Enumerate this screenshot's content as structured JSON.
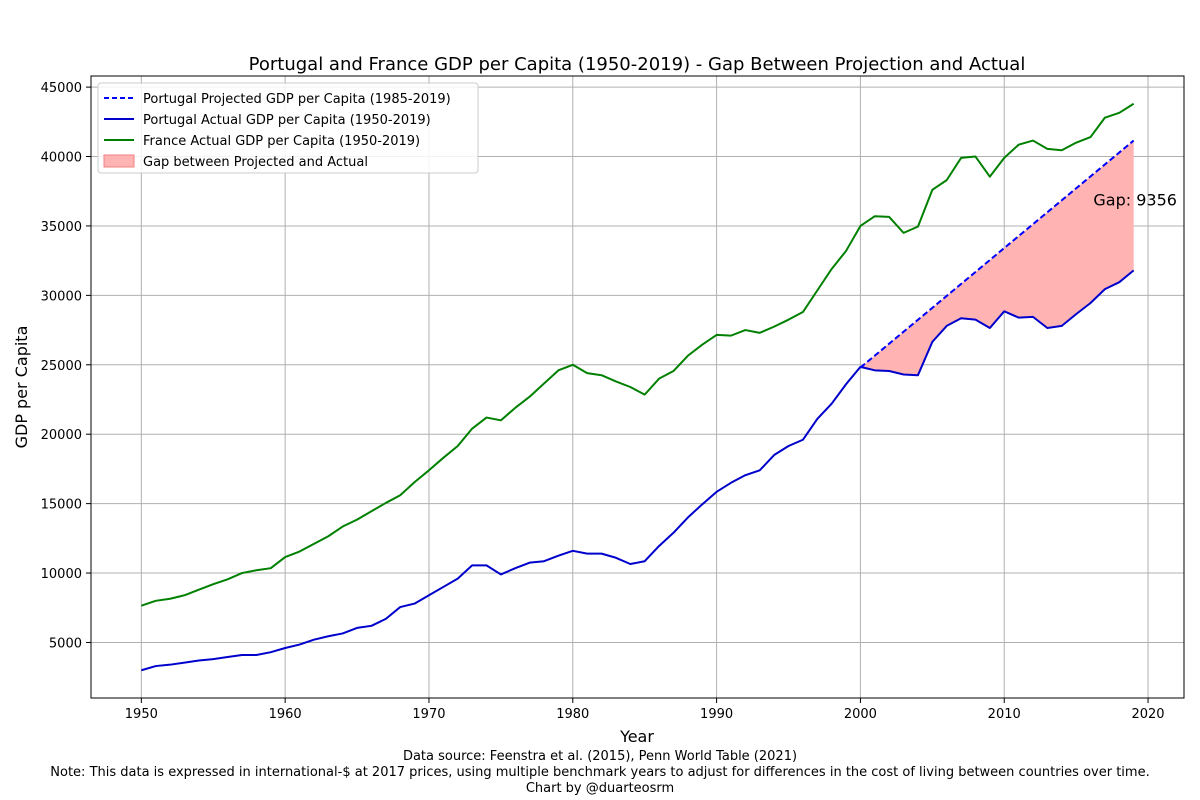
{
  "chart_data": {
    "type": "line",
    "title": "Portugal and France GDP per Capita (1950-2019) - Gap Between Projection and Actual",
    "xlabel": "Year",
    "ylabel": "GDP per Capita",
    "xlim": [
      1946.5,
      2022.5
    ],
    "ylim": [
      1000,
      45800
    ],
    "xticks": [
      1950,
      1960,
      1970,
      1980,
      1990,
      2000,
      2010,
      2020
    ],
    "yticks": [
      5000,
      10000,
      15000,
      20000,
      25000,
      30000,
      35000,
      40000,
      45000
    ],
    "grid": true,
    "legend_position": "top-left",
    "series": [
      {
        "name": "Portugal Projected GDP per Capita (1985-2019)",
        "color": "#0000ff",
        "style": "dashed",
        "x": [
          2000,
          2019
        ],
        "y": [
          24800,
          41150
        ]
      },
      {
        "name": "Portugal Actual GDP per Capita (1950-2019)",
        "color": "#0000cc",
        "style": "solid",
        "x": [
          1950,
          1951,
          1952,
          1953,
          1954,
          1955,
          1956,
          1957,
          1958,
          1959,
          1960,
          1961,
          1962,
          1963,
          1964,
          1965,
          1966,
          1967,
          1968,
          1969,
          1970,
          1971,
          1972,
          1973,
          1974,
          1975,
          1976,
          1977,
          1978,
          1979,
          1980,
          1981,
          1982,
          1983,
          1984,
          1985,
          1986,
          1987,
          1988,
          1989,
          1990,
          1991,
          1992,
          1993,
          1994,
          1995,
          1996,
          1997,
          1998,
          1999,
          2000,
          2001,
          2002,
          2003,
          2004,
          2005,
          2006,
          2007,
          2008,
          2009,
          2010,
          2011,
          2012,
          2013,
          2014,
          2015,
          2016,
          2017,
          2018,
          2019
        ],
        "y": [
          3000,
          3300,
          3400,
          3550,
          3700,
          3800,
          3950,
          4100,
          4100,
          4300,
          4600,
          4850,
          5200,
          5450,
          5650,
          6050,
          6200,
          6700,
          7550,
          7800,
          8400,
          9000,
          9600,
          10550,
          10550,
          9900,
          10350,
          10750,
          10850,
          11250,
          11600,
          11400,
          11400,
          11100,
          10650,
          10850,
          11950,
          12900,
          14000,
          14950,
          15850,
          16500,
          17050,
          17400,
          18500,
          19150,
          19600,
          21100,
          22200,
          23600,
          24850,
          24600,
          24550,
          24300,
          24250,
          26650,
          27800,
          28350,
          28250,
          27650,
          28850,
          28400,
          28450,
          27650,
          27800,
          28650,
          29450,
          30450,
          30950,
          31800
        ]
      },
      {
        "name": "France Actual GDP per Capita (1950-2019)",
        "color": "#008000",
        "style": "solid",
        "x": [
          1950,
          1951,
          1952,
          1953,
          1954,
          1955,
          1956,
          1957,
          1958,
          1959,
          1960,
          1961,
          1962,
          1963,
          1964,
          1965,
          1966,
          1967,
          1968,
          1969,
          1970,
          1971,
          1972,
          1973,
          1974,
          1975,
          1976,
          1977,
          1978,
          1979,
          1980,
          1981,
          1982,
          1983,
          1984,
          1985,
          1986,
          1987,
          1988,
          1989,
          1990,
          1991,
          1992,
          1993,
          1994,
          1995,
          1996,
          1997,
          1998,
          1999,
          2000,
          2001,
          2002,
          2003,
          2004,
          2005,
          2006,
          2007,
          2008,
          2009,
          2010,
          2011,
          2012,
          2013,
          2014,
          2015,
          2016,
          2017,
          2018,
          2019
        ],
        "y": [
          7650,
          8000,
          8150,
          8400,
          8800,
          9200,
          9550,
          10000,
          10200,
          10350,
          11150,
          11550,
          12100,
          12650,
          13350,
          13850,
          14450,
          15050,
          15600,
          16550,
          17400,
          18300,
          19150,
          20400,
          21200,
          21000,
          21900,
          22700,
          23650,
          24600,
          25000,
          24400,
          24250,
          23800,
          23400,
          22850,
          24000,
          24550,
          25650,
          26450,
          27150,
          27100,
          27500,
          27300,
          27750,
          28250,
          28800,
          30350,
          31900,
          33200,
          35000,
          35700,
          35650,
          34500,
          34950,
          37600,
          38300,
          39900,
          40000,
          38550,
          39900,
          40850,
          41150,
          40550,
          40450,
          41000,
          41400,
          42800,
          43150,
          43800
        ]
      }
    ],
    "fill_between": {
      "name": "Gap between Projected and Actual",
      "color": "#ffb3b3",
      "x_start": 2000,
      "x_end": 2019
    },
    "annotation": {
      "text": "Gap: 9356",
      "x": 2016.2,
      "y": 36900
    }
  },
  "footnotes": {
    "source": "Data source: Feenstra et al. (2015), Penn World Table (2021)",
    "note": "Note: This data is expressed in international-$ at 2017 prices, using multiple benchmark years to adjust for differences in the cost of living between countries over time.",
    "credit": "Chart by @duarteosrm"
  }
}
